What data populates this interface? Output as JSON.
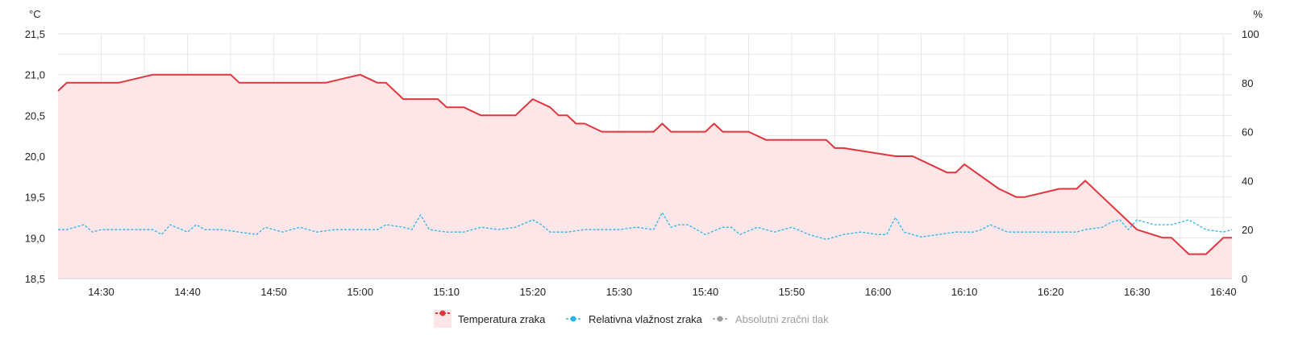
{
  "chart_data": {
    "type": "line",
    "title": "",
    "y_left": {
      "unit": "°C",
      "ticks": [
        "21,5",
        "21,0",
        "20,5",
        "20,0",
        "19,5",
        "19,0",
        "18,5"
      ],
      "range": [
        18.5,
        21.5
      ]
    },
    "y_right": {
      "unit": "%",
      "ticks": [
        "100",
        "80",
        "60",
        "40",
        "20",
        "0"
      ],
      "range": [
        0,
        100
      ]
    },
    "x_ticks": [
      "14:30",
      "14:40",
      "14:50",
      "15:00",
      "15:10",
      "15:20",
      "15:30",
      "15:40",
      "15:50",
      "16:00",
      "16:10",
      "16:20",
      "16:30",
      "16:40"
    ],
    "x_range": [
      "14:25",
      "16:41"
    ],
    "grid": true,
    "legend_position": "bottom-center",
    "series": [
      {
        "name": "Temperatura zraka",
        "axis": "left",
        "color": "#e0353d",
        "fill": "#fde6e7",
        "style": "solid-area",
        "x": [
          "14:25",
          "14:26",
          "14:32",
          "14:36",
          "14:45",
          "14:46",
          "14:56",
          "15:00",
          "15:02",
          "15:03",
          "15:05",
          "15:09",
          "15:10",
          "15:12",
          "15:14",
          "15:18",
          "15:20",
          "15:22",
          "15:23",
          "15:24",
          "15:25",
          "15:26",
          "15:28",
          "15:34",
          "15:35",
          "15:36",
          "15:40",
          "15:41",
          "15:42",
          "15:45",
          "15:47",
          "15:54",
          "15:55",
          "15:56",
          "16:02",
          "16:04",
          "16:08",
          "16:09",
          "16:10",
          "16:14",
          "16:16",
          "16:17",
          "16:21",
          "16:23",
          "16:24",
          "16:26",
          "16:28",
          "16:30",
          "16:33",
          "16:34",
          "16:36",
          "16:38",
          "16:40",
          "16:41"
        ],
        "y": [
          20.8,
          20.9,
          20.9,
          21.0,
          21.0,
          20.9,
          20.9,
          21.0,
          20.9,
          20.9,
          20.7,
          20.7,
          20.6,
          20.6,
          20.5,
          20.5,
          20.7,
          20.6,
          20.5,
          20.5,
          20.4,
          20.4,
          20.3,
          20.3,
          20.4,
          20.3,
          20.3,
          20.4,
          20.3,
          20.3,
          20.2,
          20.2,
          20.1,
          20.1,
          20.0,
          20.0,
          19.8,
          19.8,
          19.9,
          19.6,
          19.5,
          19.5,
          19.6,
          19.6,
          19.7,
          19.5,
          19.3,
          19.1,
          19.0,
          19.0,
          18.8,
          18.8,
          19.0,
          19.0
        ]
      },
      {
        "name": "Relativna vlažnost zraka",
        "axis": "right",
        "color": "#29b6e8",
        "style": "dashed",
        "x": [
          "14:25",
          "14:26",
          "14:28",
          "14:29",
          "14:30",
          "14:32",
          "14:34",
          "14:36",
          "14:37",
          "14:38",
          "14:40",
          "14:41",
          "14:42",
          "14:44",
          "14:46",
          "14:48",
          "14:49",
          "14:50",
          "14:51",
          "14:53",
          "14:55",
          "14:57",
          "14:59",
          "15:01",
          "15:02",
          "15:03",
          "15:05",
          "15:06",
          "15:07",
          "15:08",
          "15:10",
          "15:12",
          "15:14",
          "15:16",
          "15:18",
          "15:20",
          "15:21",
          "15:22",
          "15:24",
          "15:26",
          "15:28",
          "15:30",
          "15:32",
          "15:34",
          "15:35",
          "15:36",
          "15:37",
          "15:38",
          "15:40",
          "15:42",
          "15:43",
          "15:44",
          "15:46",
          "15:47",
          "15:48",
          "15:50",
          "15:52",
          "15:53",
          "15:54",
          "15:56",
          "15:58",
          "16:00",
          "16:01",
          "16:02",
          "16:03",
          "16:05",
          "16:07",
          "16:09",
          "16:11",
          "16:12",
          "16:13",
          "16:15",
          "16:17",
          "16:19",
          "16:21",
          "16:23",
          "16:24",
          "16:26",
          "16:27",
          "16:28",
          "16:29",
          "16:30",
          "16:32",
          "16:34",
          "16:35",
          "16:36",
          "16:38",
          "16:40",
          "16:41"
        ],
        "y": [
          20,
          20,
          22,
          19,
          20,
          20,
          20,
          20,
          18,
          22,
          19,
          22,
          20,
          20,
          19,
          18,
          21,
          20,
          19,
          21,
          19,
          20,
          20,
          20,
          20,
          22,
          21,
          20,
          26,
          20,
          19,
          19,
          21,
          20,
          21,
          24,
          22,
          19,
          19,
          20,
          20,
          20,
          21,
          20,
          27,
          21,
          22,
          22,
          18,
          21,
          21,
          18,
          21,
          20,
          19,
          21,
          18,
          17,
          16,
          18,
          19,
          18,
          18,
          25,
          19,
          17,
          18,
          19,
          19,
          20,
          22,
          19,
          19,
          19,
          19,
          19,
          20,
          21,
          23,
          24,
          20,
          24,
          22,
          22,
          23,
          24,
          20,
          19,
          20
        ]
      },
      {
        "name": "Absolutni zračni tlak",
        "axis": "right",
        "color": "#9e9e9e",
        "style": "dashed",
        "hidden": true,
        "x": [],
        "y": []
      }
    ]
  }
}
